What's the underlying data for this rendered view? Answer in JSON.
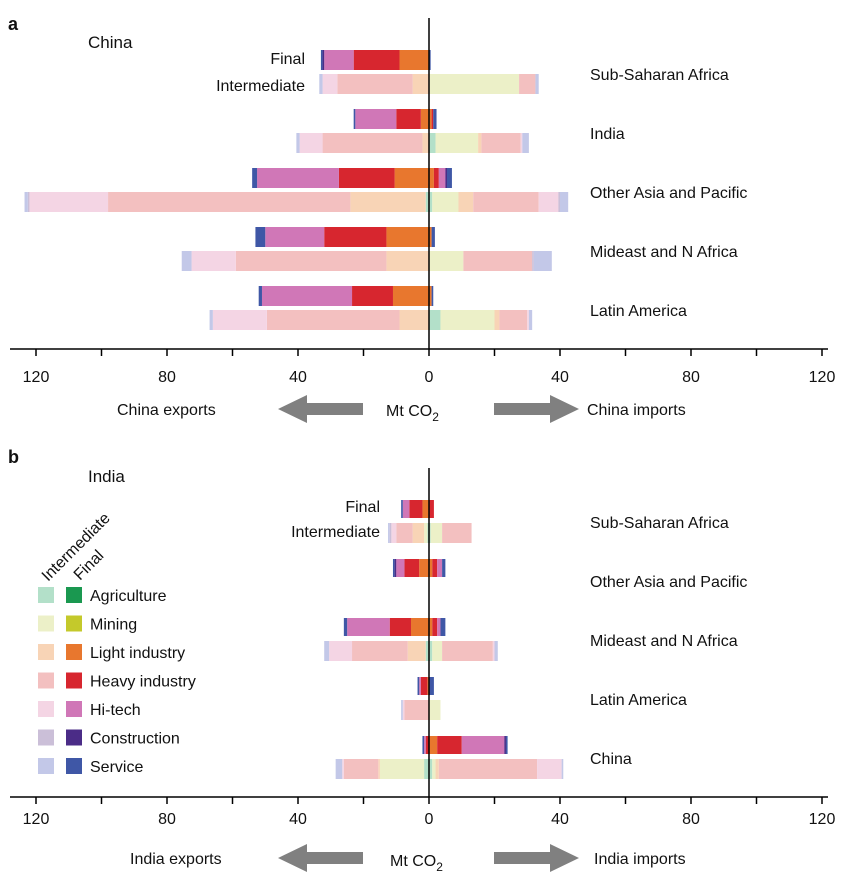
{
  "figure": {
    "sectors": [
      "Agriculture",
      "Mining",
      "Light industry",
      "Heavy industry",
      "Hi-tech",
      "Construction",
      "Service"
    ],
    "colors": {
      "intermediate": [
        "#b3e0c9",
        "#ecf0c8",
        "#f8d4b6",
        "#f3c0c0",
        "#f4d5e4",
        "#cbbfd8",
        "#c3c8e8"
      ],
      "final": [
        "#1a9850",
        "#c4c92b",
        "#e8772e",
        "#d7262f",
        "#d077b7",
        "#4b2c87",
        "#3f57a6"
      ]
    },
    "legend": {
      "header_intermediate": "Intermediate",
      "header_final": "Final"
    },
    "arrow_color": "#808080"
  },
  "chart_data": [
    {
      "panel_letter": "a",
      "panel_title": "China",
      "type": "bar",
      "orientation": "horizontal-stacked",
      "xlabel": "Mt CO2",
      "xlim": [
        -120,
        120
      ],
      "ticks": [
        -120,
        -80,
        -40,
        0,
        40,
        80,
        120
      ],
      "tick_labels": [
        "120",
        "80",
        "40",
        "0",
        "40",
        "80",
        "120"
      ],
      "left_label": "China exports",
      "right_label": "China imports",
      "bar_labels": {
        "final": "Final",
        "intermediate": "Intermediate"
      },
      "regions": [
        {
          "name": "Sub-Saharan Africa",
          "final_exports": [
            0,
            0,
            9,
            14,
            9,
            0.5,
            0.5
          ],
          "final_imports": [
            0,
            0,
            0,
            0,
            0,
            0,
            0.5
          ],
          "intermediate_exports": [
            0,
            0,
            5,
            23,
            4.5,
            0,
            1
          ],
          "intermediate_imports": [
            0,
            27.5,
            0,
            5,
            0,
            0,
            1
          ]
        },
        {
          "name": "India",
          "final_exports": [
            0,
            0,
            2.5,
            7.5,
            12.5,
            0,
            0.5
          ],
          "final_imports": [
            0,
            0,
            0.8,
            0.5,
            0,
            0,
            1
          ],
          "intermediate_exports": [
            0,
            0,
            2,
            30.5,
            7,
            0,
            1
          ],
          "intermediate_imports": [
            2,
            13,
            1,
            12,
            0.5,
            0,
            2
          ]
        },
        {
          "name": "Other Asia and Pacific",
          "final_exports": [
            0,
            0,
            10.5,
            17,
            25,
            0,
            1.5
          ],
          "final_imports": [
            0,
            0,
            1.5,
            1.5,
            2,
            0.5,
            1.5
          ],
          "intermediate_exports": [
            1,
            0,
            23,
            74,
            24,
            0.5,
            1
          ],
          "intermediate_imports": [
            1,
            8,
            4.5,
            20,
            6,
            0.5,
            2.5
          ]
        },
        {
          "name": "Mideast and N Africa",
          "final_exports": [
            0,
            0,
            13,
            19,
            18,
            0,
            3
          ],
          "final_imports": [
            0,
            0,
            0.8,
            0,
            0,
            0,
            1
          ],
          "intermediate_exports": [
            0,
            0,
            13,
            46,
            13.5,
            0,
            3
          ],
          "intermediate_imports": [
            0,
            10.5,
            0,
            21,
            0,
            0.5,
            5.5
          ]
        },
        {
          "name": "Latin America",
          "final_exports": [
            0,
            0,
            11,
            12.5,
            27.5,
            0,
            1
          ],
          "final_imports": [
            0,
            0,
            0.8,
            0,
            0,
            0,
            0.5
          ],
          "intermediate_exports": [
            0,
            0,
            9,
            40.5,
            16.5,
            0,
            1
          ],
          "intermediate_imports": [
            3.5,
            16.5,
            1.5,
            8.5,
            0.5,
            0,
            1
          ]
        }
      ]
    },
    {
      "panel_letter": "b",
      "panel_title": "India",
      "type": "bar",
      "orientation": "horizontal-stacked",
      "xlabel": "Mt CO2",
      "xlim": [
        -120,
        120
      ],
      "ticks": [
        -120,
        -80,
        -40,
        0,
        40,
        80,
        120
      ],
      "tick_labels": [
        "120",
        "80",
        "40",
        "0",
        "40",
        "80",
        "120"
      ],
      "left_label": "India exports",
      "right_label": "India imports",
      "bar_labels": {
        "final": "Final",
        "intermediate": "Intermediate"
      },
      "regions": [
        {
          "name": "Sub-Saharan Africa",
          "final_exports": [
            0,
            0,
            2,
            4,
            2,
            0,
            0.5
          ],
          "final_imports": [
            0,
            0,
            0,
            1.5,
            0,
            0,
            0
          ],
          "intermediate_exports": [
            0.5,
            1,
            3.5,
            5,
            1.5,
            0.5,
            0.5
          ],
          "intermediate_imports": [
            0.5,
            3.5,
            0,
            9,
            0,
            0,
            0
          ]
        },
        {
          "name": "Other Asia and Pacific",
          "final_exports": [
            0,
            0,
            3,
            4.5,
            2.5,
            0.5,
            0.5
          ],
          "final_imports": [
            0,
            0,
            1,
            1.5,
            1.5,
            0,
            1
          ]
        },
        {
          "name": "Mideast and N Africa",
          "final_exports": [
            0,
            0,
            5.5,
            6.5,
            13,
            0,
            1
          ],
          "final_imports": [
            0,
            0,
            1,
            1.5,
            1,
            0,
            1.5
          ],
          "intermediate_exports": [
            1,
            0,
            5.5,
            17,
            7,
            0,
            1.5
          ],
          "intermediate_imports": [
            1,
            3,
            0,
            15.5,
            0.5,
            0,
            1
          ]
        },
        {
          "name": "Latin America",
          "final_exports": [
            0,
            0,
            0.5,
            2,
            0.5,
            0,
            0.5
          ],
          "final_imports": [
            0,
            0,
            0,
            0,
            0,
            0,
            1.5
          ],
          "intermediate_exports": [
            0,
            0,
            0,
            7.5,
            0.5,
            0,
            0.5
          ],
          "intermediate_imports": [
            0,
            3.5,
            0,
            0,
            0,
            0,
            0
          ]
        },
        {
          "name": "China",
          "final_exports": [
            0,
            0,
            0,
            1,
            0.5,
            0,
            0.5
          ],
          "final_imports": [
            0,
            0,
            2.5,
            7.5,
            13,
            0.5,
            0.5
          ],
          "intermediate_exports": [
            1.5,
            13.5,
            0.5,
            10.5,
            0.5,
            0,
            2
          ],
          "intermediate_imports": [
            1,
            1,
            1,
            30,
            7.5,
            0,
            0.5
          ]
        }
      ]
    }
  ]
}
